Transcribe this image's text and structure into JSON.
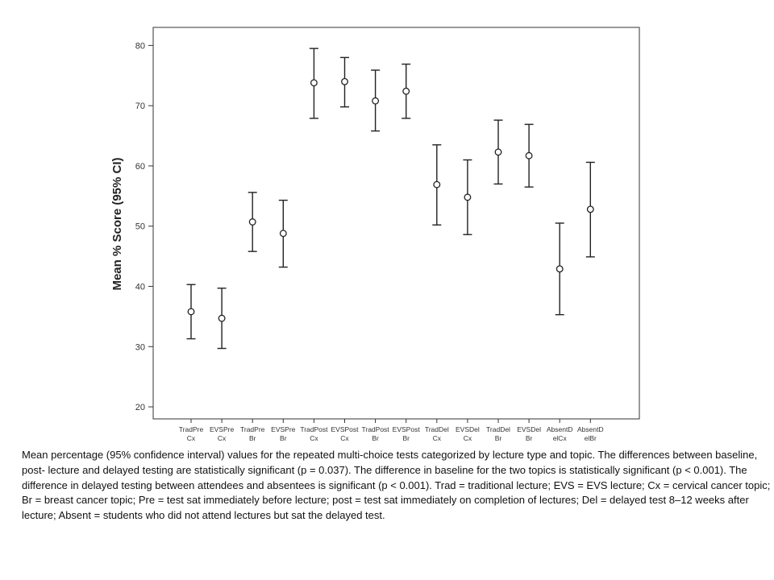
{
  "chart_data": {
    "type": "scatter",
    "ylabel": "Mean % Score (95% CI)",
    "xlabel": "",
    "ylim": [
      18,
      83
    ],
    "yticks": [
      20,
      30,
      40,
      50,
      60,
      70,
      80
    ],
    "grid": false,
    "categories": [
      [
        "TradPre",
        "Cx"
      ],
      [
        "EVSPre",
        "Cx"
      ],
      [
        "TradPre",
        "Br"
      ],
      [
        "EVSPre",
        "Br"
      ],
      [
        "TradPost",
        "Cx"
      ],
      [
        "EVSPost",
        "Cx"
      ],
      [
        "TradPost",
        "Br"
      ],
      [
        "EVSPost",
        "Br"
      ],
      [
        "TradDel",
        "Cx"
      ],
      [
        "EVSDel",
        "Cx"
      ],
      [
        "TradDel",
        "Br"
      ],
      [
        "EVSDel",
        "Br"
      ],
      [
        "AbsentD",
        "elCx"
      ],
      [
        "AbsentD",
        "elBr"
      ]
    ],
    "series": [
      {
        "mean": [
          35.8,
          34.7,
          50.7,
          48.8,
          73.8,
          74.0,
          70.8,
          72.4,
          56.9,
          54.8,
          62.3,
          61.7,
          42.9,
          52.8
        ],
        "lower": [
          31.3,
          29.7,
          45.8,
          43.2,
          67.9,
          69.8,
          65.8,
          67.9,
          50.2,
          48.6,
          57.0,
          56.5,
          35.3,
          44.9
        ],
        "upper": [
          40.3,
          39.7,
          55.6,
          54.3,
          79.5,
          78.0,
          75.9,
          76.9,
          63.5,
          61.0,
          67.6,
          66.9,
          50.5,
          60.6
        ]
      }
    ]
  },
  "caption": "Mean percentage (95% confidence interval) values for the repeated multi-choice tests categorized by lecture type and topic.  The differences between baseline, post- lecture and delayed testing are statistically significant (p = 0.037). The difference in baseline for the two topics is statistically significant (p < 0.001). The difference in delayed testing between attendees and absentees is significant (p < 0.001). Trad = traditional lecture; EVS = EVS lecture; Cx = cervical cancer topic; Br = breast cancer topic; Pre = test sat immediately before lecture; post = test sat immediately on completion of lectures; Del = delayed test 8–12 weeks after lecture; Absent  = students  who did not attend lectures but sat the delayed test."
}
